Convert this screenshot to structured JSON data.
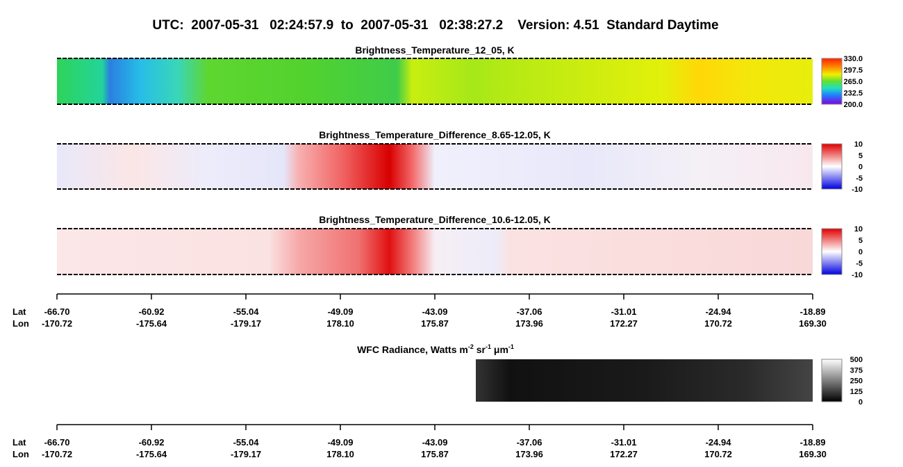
{
  "header": {
    "title": "UTC:  2007-05-31   02:24:57.9  to  2007-05-31   02:38:27.2    Version: 4.51  Standard Daytime"
  },
  "panels": [
    {
      "title": "Brightness_Temperature_12_05, K",
      "colorbar": [
        "330.0",
        "297.5",
        "265.0",
        "232.5",
        "200.0"
      ]
    },
    {
      "title": "Brightness_Temperature_Difference_8.65-12.05, K",
      "colorbar": [
        "10",
        "5",
        "0",
        "-5",
        "-10"
      ]
    },
    {
      "title": "Brightness_Temperature_Difference_10.6-12.05, K",
      "colorbar": [
        "10",
        "5",
        "0",
        "-5",
        "-10"
      ]
    }
  ],
  "wfc": {
    "title_parts": [
      "WFC Radiance, Watts m",
      "-2",
      " sr",
      "-1",
      " μm",
      "-1"
    ],
    "colorbar": [
      "500",
      "375",
      "250",
      "125",
      "0"
    ]
  },
  "axes": [
    {
      "lat_label": "Lat",
      "lon_label": "Lon",
      "lat": [
        "-66.70",
        "-60.92",
        "-55.04",
        "-49.09",
        "-43.09",
        "-37.06",
        "-31.01",
        "-24.94",
        "-18.89"
      ],
      "lon": [
        "-170.72",
        "-175.64",
        "-179.17",
        "178.10",
        "175.87",
        "173.96",
        "172.27",
        "170.72",
        "169.30"
      ]
    },
    {
      "lat_label": "Lat",
      "lon_label": "Lon",
      "lat": [
        "-66.70",
        "-60.92",
        "-55.04",
        "-49.09",
        "-43.09",
        "-37.06",
        "-31.01",
        "-24.94",
        "-18.89"
      ],
      "lon": [
        "-170.72",
        "-175.64",
        "-179.17",
        "178.10",
        "175.87",
        "173.96",
        "172.27",
        "170.72",
        "169.30"
      ]
    }
  ]
}
